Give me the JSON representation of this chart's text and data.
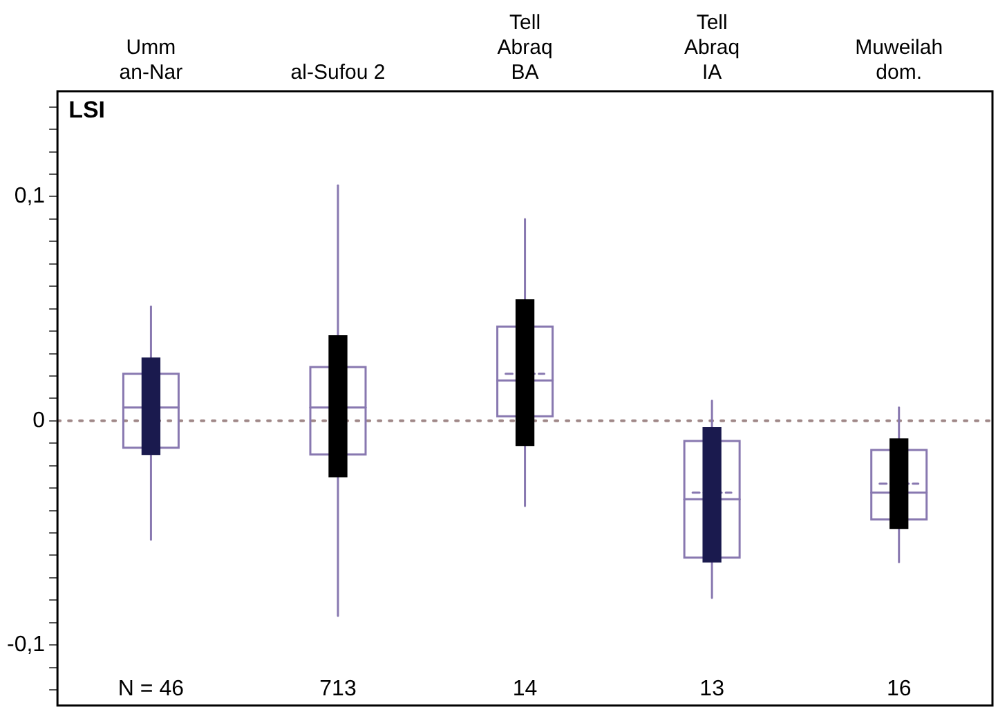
{
  "chart_data": {
    "type": "box",
    "ylabel": "LSI",
    "categories": [
      "Umm\nan-Nar",
      "al-Sufou 2",
      "Tell\nAbraq\nBA",
      "Tell\nAbraq\nIA",
      "Muweilah\ndom."
    ],
    "series": [
      {
        "color": "#8878b0",
        "boxes": [
          {
            "low": -0.053,
            "q1": -0.012,
            "median": 0.006,
            "q3": 0.021,
            "high": 0.051,
            "mean": 0.006
          },
          {
            "low": -0.087,
            "q1": -0.015,
            "median": 0.006,
            "q3": 0.024,
            "high": 0.105,
            "mean": 0.006
          },
          {
            "low": -0.038,
            "q1": 0.002,
            "median": 0.021,
            "q3": 0.042,
            "high": 0.09,
            "mean": 0.018
          },
          {
            "low": -0.079,
            "q1": -0.061,
            "median": -0.032,
            "q3": -0.009,
            "high": 0.009,
            "mean": -0.035
          },
          {
            "low": -0.063,
            "q1": -0.044,
            "median": -0.028,
            "q3": -0.013,
            "high": 0.006,
            "mean": -0.032
          }
        ]
      },
      {
        "type": "bar",
        "colors": [
          "#1a1a4e",
          "#000000",
          "#000000",
          "#1a1a4e",
          "#000000"
        ],
        "base": [
          -0.015,
          -0.025,
          -0.011,
          -0.063,
          -0.048
        ],
        "values": [
          0.043,
          0.063,
          0.065,
          0.06,
          0.04
        ]
      }
    ],
    "ylim": [
      -0.127,
      0.147
    ],
    "yticks": [
      {
        "value": -0.12,
        "label": null
      },
      {
        "value": -0.11,
        "label": null
      },
      {
        "value": -0.1,
        "label": "-0,1"
      },
      {
        "value": -0.09,
        "label": null
      },
      {
        "value": -0.08,
        "label": null
      },
      {
        "value": -0.07,
        "label": null
      },
      {
        "value": -0.06,
        "label": null
      },
      {
        "value": -0.05,
        "label": null
      },
      {
        "value": -0.04,
        "label": null
      },
      {
        "value": -0.03,
        "label": null
      },
      {
        "value": -0.02,
        "label": null
      },
      {
        "value": -0.01,
        "label": null
      },
      0,
      {
        "value": 0.01,
        "label": null
      },
      {
        "value": 0.02,
        "label": null
      },
      {
        "value": 0.03,
        "label": null
      },
      {
        "value": 0.04,
        "label": null
      },
      {
        "value": 0.05,
        "label": null
      },
      {
        "value": 0.06,
        "label": null
      },
      {
        "value": 0.07,
        "label": null
      },
      {
        "value": 0.08,
        "label": null
      },
      {
        "value": 0.09,
        "label": null
      },
      {
        "value": 0.1,
        "label": "0,1"
      },
      {
        "value": 0.11,
        "label": null
      },
      {
        "value": 0.12,
        "label": null
      },
      {
        "value": 0.13,
        "label": null
      },
      {
        "value": 0.14,
        "label": null
      }
    ],
    "ref_lines": [
      {
        "axis": "y",
        "value": 0,
        "color": "#a08888",
        "line_style": "dotted"
      }
    ],
    "annotations": [
      "N = 46",
      "713",
      "14",
      "13",
      "16"
    ],
    "grid": false,
    "legend": false
  }
}
